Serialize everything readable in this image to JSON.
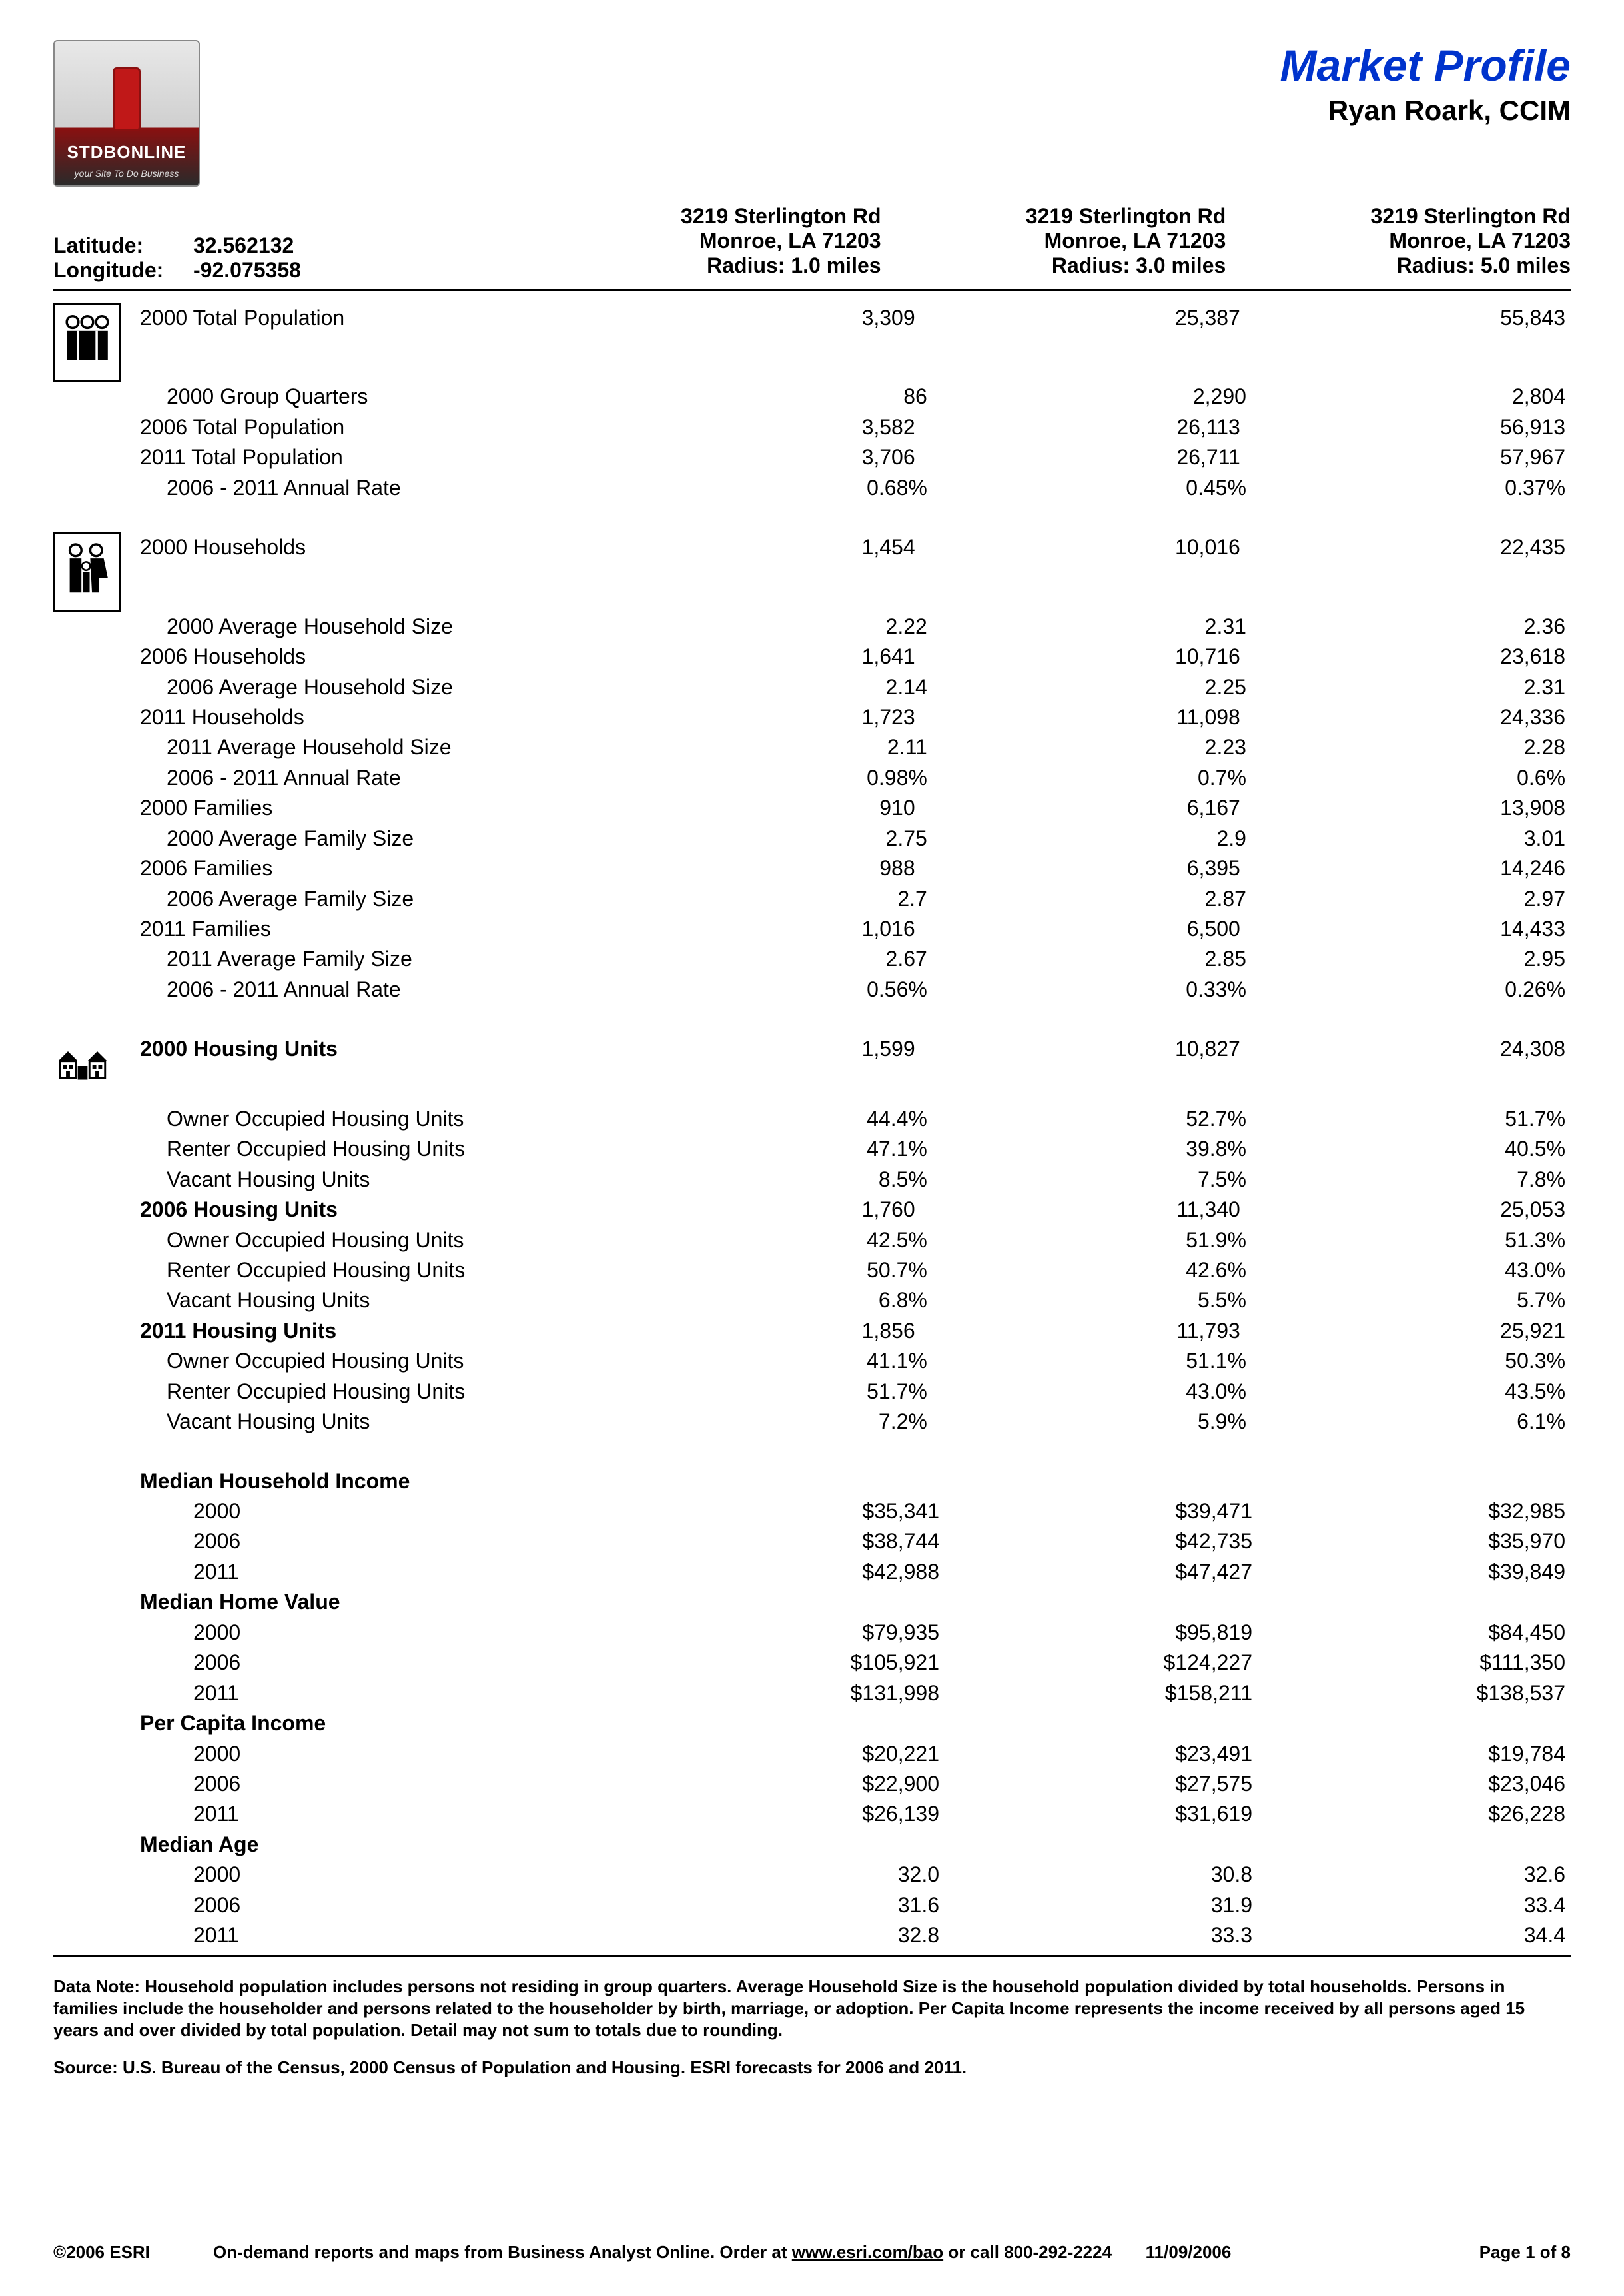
{
  "header": {
    "title": "Market Profile",
    "subtitle": "Ryan Roark, CCIM",
    "logo_text1": "STDBONLINE",
    "logo_text2": "your Site To Do Business",
    "colors": {
      "title": "#0033cc"
    }
  },
  "meta": {
    "latitude_label": "Latitude:",
    "latitude_value": "32.562132",
    "longitude_label": "Longitude:",
    "longitude_value": "-92.075358",
    "columns": [
      {
        "line1": "3219 Sterlington Rd",
        "line2": "Monroe, LA 71203",
        "line3": "Radius: 1.0 miles"
      },
      {
        "line1": "3219 Sterlington Rd",
        "line2": "Monroe, LA 71203",
        "line3": "Radius: 3.0 miles"
      },
      {
        "line1": "3219 Sterlington Rd",
        "line2": "Monroe, LA 71203",
        "line3": "Radius: 5.0 miles"
      }
    ]
  },
  "sections": [
    {
      "icon": "people-icon",
      "rows": [
        {
          "label": "2000 Total Population",
          "indent": 0,
          "v": [
            "3,309",
            "25,387",
            "55,843"
          ]
        },
        {
          "label": "2000 Group Quarters",
          "indent": 1,
          "v": [
            "86",
            "2,290",
            "2,804"
          ]
        },
        {
          "label": "2006 Total Population",
          "indent": 0,
          "v": [
            "3,582",
            "26,113",
            "56,913"
          ]
        },
        {
          "label": "2011 Total Population",
          "indent": 0,
          "v": [
            "3,706",
            "26,711",
            "57,967"
          ]
        },
        {
          "label": "2006 - 2011 Annual Rate",
          "indent": 1,
          "v": [
            "0.68%",
            "0.45%",
            "0.37%"
          ]
        }
      ]
    },
    {
      "icon": "family-icon",
      "rows": [
        {
          "label": "2000 Households",
          "indent": 0,
          "v": [
            "1,454",
            "10,016",
            "22,435"
          ]
        },
        {
          "label": "2000 Average Household Size",
          "indent": 1,
          "v": [
            "2.22",
            "2.31",
            "2.36"
          ]
        },
        {
          "label": "2006 Households",
          "indent": 0,
          "v": [
            "1,641",
            "10,716",
            "23,618"
          ]
        },
        {
          "label": "2006 Average Household Size",
          "indent": 1,
          "v": [
            "2.14",
            "2.25",
            "2.31"
          ]
        },
        {
          "label": "2011 Households",
          "indent": 0,
          "v": [
            "1,723",
            "11,098",
            "24,336"
          ]
        },
        {
          "label": "2011 Average Household Size",
          "indent": 1,
          "v": [
            "2.11",
            "2.23",
            "2.28"
          ]
        },
        {
          "label": "2006 - 2011 Annual Rate",
          "indent": 1,
          "v": [
            "0.98%",
            "0.7%",
            "0.6%"
          ]
        },
        {
          "label": "2000 Families",
          "indent": 0,
          "v": [
            "910",
            "6,167",
            "13,908"
          ]
        },
        {
          "label": "2000 Average Family Size",
          "indent": 1,
          "v": [
            "2.75",
            "2.9",
            "3.01"
          ]
        },
        {
          "label": "2006 Families",
          "indent": 0,
          "v": [
            "988",
            "6,395",
            "14,246"
          ]
        },
        {
          "label": "2006 Average Family Size",
          "indent": 1,
          "v": [
            "2.7",
            "2.87",
            "2.97"
          ]
        },
        {
          "label": "2011 Families",
          "indent": 0,
          "v": [
            "1,016",
            "6,500",
            "14,433"
          ]
        },
        {
          "label": "2011 Average Family Size",
          "indent": 1,
          "v": [
            "2.67",
            "2.85",
            "2.95"
          ]
        },
        {
          "label": "2006 - 2011 Annual Rate",
          "indent": 1,
          "v": [
            "0.56%",
            "0.33%",
            "0.26%"
          ]
        }
      ]
    },
    {
      "icon": "houses-icon",
      "rows": [
        {
          "label": "2000 Housing Units",
          "indent": 0,
          "bold": true,
          "v": [
            "1,599",
            "10,827",
            "24,308"
          ]
        },
        {
          "label": "Owner Occupied Housing Units",
          "indent": 1,
          "v": [
            "44.4%",
            "52.7%",
            "51.7%"
          ]
        },
        {
          "label": "Renter Occupied Housing Units",
          "indent": 1,
          "v": [
            "47.1%",
            "39.8%",
            "40.5%"
          ]
        },
        {
          "label": "Vacant Housing Units",
          "indent": 1,
          "v": [
            "8.5%",
            "7.5%",
            "7.8%"
          ]
        },
        {
          "label": "2006 Housing Units",
          "indent": 0,
          "bold": true,
          "v": [
            "1,760",
            "11,340",
            "25,053"
          ]
        },
        {
          "label": "Owner Occupied Housing Units",
          "indent": 1,
          "v": [
            "42.5%",
            "51.9%",
            "51.3%"
          ]
        },
        {
          "label": "Renter Occupied Housing Units",
          "indent": 1,
          "v": [
            "50.7%",
            "42.6%",
            "43.0%"
          ]
        },
        {
          "label": "Vacant Housing Units",
          "indent": 1,
          "v": [
            "6.8%",
            "5.5%",
            "5.7%"
          ]
        },
        {
          "label": "2011 Housing Units",
          "indent": 0,
          "bold": true,
          "v": [
            "1,856",
            "11,793",
            "25,921"
          ]
        },
        {
          "label": "Owner Occupied Housing Units",
          "indent": 1,
          "v": [
            "41.1%",
            "51.1%",
            "50.3%"
          ]
        },
        {
          "label": "Renter Occupied Housing Units",
          "indent": 1,
          "v": [
            "51.7%",
            "43.0%",
            "43.5%"
          ]
        },
        {
          "label": "Vacant Housing Units",
          "indent": 1,
          "v": [
            "7.2%",
            "5.9%",
            "6.1%"
          ]
        }
      ]
    },
    {
      "icon": null,
      "rows": [
        {
          "label": "Median Household Income",
          "indent": 0,
          "bold": true,
          "v": [
            "",
            "",
            ""
          ]
        },
        {
          "label": "2000",
          "indent": 2,
          "v": [
            "$35,341",
            "$39,471",
            "$32,985"
          ]
        },
        {
          "label": "2006",
          "indent": 2,
          "v": [
            "$38,744",
            "$42,735",
            "$35,970"
          ]
        },
        {
          "label": "2011",
          "indent": 2,
          "v": [
            "$42,988",
            "$47,427",
            "$39,849"
          ]
        },
        {
          "label": "Median Home Value",
          "indent": 0,
          "bold": true,
          "v": [
            "",
            "",
            ""
          ]
        },
        {
          "label": "2000",
          "indent": 2,
          "v": [
            "$79,935",
            "$95,819",
            "$84,450"
          ]
        },
        {
          "label": "2006",
          "indent": 2,
          "v": [
            "$105,921",
            "$124,227",
            "$111,350"
          ]
        },
        {
          "label": "2011",
          "indent": 2,
          "v": [
            "$131,998",
            "$158,211",
            "$138,537"
          ]
        },
        {
          "label": "Per Capita Income",
          "indent": 0,
          "bold": true,
          "v": [
            "",
            "",
            ""
          ]
        },
        {
          "label": "2000",
          "indent": 2,
          "v": [
            "$20,221",
            "$23,491",
            "$19,784"
          ]
        },
        {
          "label": "2006",
          "indent": 2,
          "v": [
            "$22,900",
            "$27,575",
            "$23,046"
          ]
        },
        {
          "label": "2011",
          "indent": 2,
          "v": [
            "$26,139",
            "$31,619",
            "$26,228"
          ]
        },
        {
          "label": "Median Age",
          "indent": 0,
          "bold": true,
          "v": [
            "",
            "",
            ""
          ]
        },
        {
          "label": "2000",
          "indent": 2,
          "v": [
            "32.0",
            "30.8",
            "32.6"
          ]
        },
        {
          "label": "2006",
          "indent": 2,
          "v": [
            "31.6",
            "31.9",
            "33.4"
          ]
        },
        {
          "label": "2011",
          "indent": 2,
          "v": [
            "32.8",
            "33.3",
            "34.4"
          ]
        }
      ]
    }
  ],
  "footnotes": {
    "data_note_label": "Data Note:  ",
    "data_note_text": "Household population includes persons not residing in group quarters. Average Household Size is the household population divided by total households. Persons in families include the householder and persons related to the householder by birth, marriage, or adoption. Per Capita Income represents the income received by all persons aged 15 years and over divided by total population. Detail may not sum to totals due to rounding.",
    "source_label": "Source: ",
    "source_text": "U.S. Bureau of the Census, 2000 Census of Population and Housing. ESRI forecasts for 2006 and 2011."
  },
  "footer": {
    "copyright": "©2006 ESRI",
    "mid_pre": "On-demand reports and maps from Business Analyst Online. Order at ",
    "mid_link": "www.esri.com/bao",
    "mid_post": " or call 800-292-2224",
    "date": "11/09/2006",
    "page": "Page 1 of 8"
  }
}
